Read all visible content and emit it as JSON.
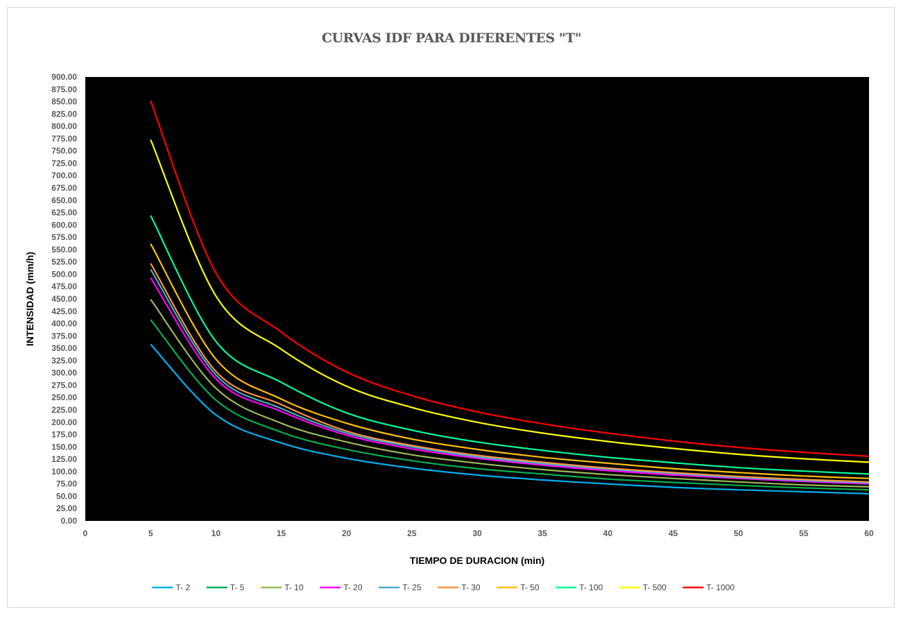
{
  "chart_data": {
    "type": "line",
    "title": "CURVAS IDF PARA DIFERENTES \"T\"",
    "xlabel": "TIEMPO DE DURACION (min)",
    "ylabel": "INTENSIDAD (mm/h)",
    "xlim": [
      0,
      60
    ],
    "ylim": [
      0,
      900
    ],
    "x_ticks": [
      0,
      5,
      10,
      15,
      20,
      25,
      30,
      35,
      40,
      45,
      50,
      55,
      60
    ],
    "y_ticks": [
      "0.00",
      "25.00",
      "50.00",
      "75.00",
      "100.00",
      "125.00",
      "150.00",
      "175.00",
      "200.00",
      "225.00",
      "250.00",
      "275.00",
      "300.00",
      "325.00",
      "350.00",
      "375.00",
      "400.00",
      "425.00",
      "450.00",
      "475.00",
      "500.00",
      "525.00",
      "550.00",
      "575.00",
      "600.00",
      "625.00",
      "650.00",
      "675.00",
      "700.00",
      "725.00",
      "750.00",
      "775.00",
      "800.00",
      "825.00",
      "850.00",
      "875.00",
      "900.00"
    ],
    "plot_background": "#000000",
    "grid": false,
    "legend_position": "bottom",
    "x": [
      5,
      10,
      15,
      20,
      25,
      30,
      35,
      40,
      45,
      50,
      55,
      60
    ],
    "series": [
      {
        "name": "T- 2",
        "color": "#00b0f0",
        "values": [
          358,
          215,
          158,
          127,
          107,
          93,
          83,
          75,
          68,
          63,
          59,
          55
        ]
      },
      {
        "name": "T- 5",
        "color": "#00b050",
        "values": [
          408,
          245,
          180,
          145,
          122,
          106,
          95,
          85,
          78,
          72,
          67,
          63
        ]
      },
      {
        "name": "T- 10",
        "color": "#9bbb59",
        "values": [
          449,
          269,
          198,
          160,
          134,
          117,
          104,
          94,
          86,
          79,
          73,
          69
        ]
      },
      {
        "name": "T- 20",
        "color": "#ff00ff",
        "values": [
          493,
          288,
          222,
          174,
          146,
          127,
          113,
          102,
          93,
          86,
          80,
          75
        ]
      },
      {
        "name": "T- 25",
        "color": "#4bacc6",
        "values": [
          510,
          296,
          228,
          178,
          150,
          130,
          116,
          105,
          96,
          88,
          82,
          77
        ]
      },
      {
        "name": "T- 30",
        "color": "#f79646",
        "values": [
          522,
          303,
          236,
          182,
          153,
          133,
          119,
          107,
          98,
          90,
          84,
          79
        ]
      },
      {
        "name": "T- 50",
        "color": "#ffc000",
        "values": [
          562,
          328,
          247,
          198,
          166,
          145,
          129,
          117,
          106,
          98,
          91,
          86
        ]
      },
      {
        "name": "T- 100",
        "color": "#00ff99",
        "values": [
          619,
          364,
          281,
          219,
          184,
          160,
          143,
          129,
          118,
          108,
          101,
          95
        ]
      },
      {
        "name": "T- 500",
        "color": "#ffff00",
        "values": [
          773,
          456,
          348,
          273,
          230,
          200,
          178,
          161,
          147,
          135,
          126,
          119
        ]
      },
      {
        "name": "T- 1000",
        "color": "#ff0000",
        "values": [
          852,
          503,
          383,
          302,
          254,
          221,
          197,
          178,
          162,
          149,
          139,
          131
        ]
      }
    ]
  }
}
